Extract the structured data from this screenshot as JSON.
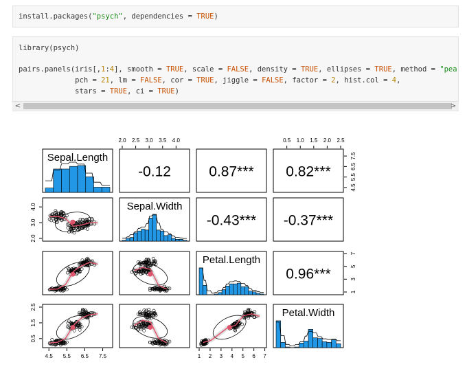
{
  "code_block_1": {
    "func": "install.packages",
    "open": "(",
    "arg1": "\"psych\"",
    "sep": ", dependencies = ",
    "val": "TRUE",
    "close": ")"
  },
  "code_block_2": {
    "line1": "library(psych)",
    "line3": {
      "a": "pairs.panels(iris[,",
      "b": "1",
      "c": ":",
      "d": "4",
      "e": "], smooth = ",
      "f": "TRUE",
      "g": ", scale = ",
      "h": "FALSE",
      "i": ", density = ",
      "j": "TRUE",
      "k": ", ellipses = ",
      "l": "TRUE",
      "m": ", method = ",
      "n": "\"pearson\""
    },
    "line4": {
      "a": "             pch = ",
      "b": "21",
      "c": ", lm = ",
      "d": "FALSE",
      "e": ", cor = ",
      "f": "TRUE",
      "g": ", jiggle = ",
      "h": "FALSE",
      "i": ", factor = ",
      "j": "2",
      "k": ", hist.col = ",
      "l": "4",
      "m": ","
    },
    "line5": {
      "a": "             stars = ",
      "b": "TRUE",
      "c": ", ci = ",
      "d": "TRUE",
      "e": ")"
    }
  },
  "scrollbar": {
    "left_arrow": "<",
    "right_arrow": ">"
  },
  "chart_data": {
    "type": "scatter",
    "variables": [
      "Sepal.Length",
      "Sepal.Width",
      "Petal.Length",
      "Petal.Width"
    ],
    "correlations": {
      "Sepal.Length|Sepal.Width": "-0.12",
      "Sepal.Length|Petal.Length": "0.87***",
      "Sepal.Length|Petal.Width": "0.82***",
      "Sepal.Width|Petal.Length": "-0.43***",
      "Sepal.Width|Petal.Width": "-0.37***",
      "Petal.Length|Petal.Width": "0.96***"
    },
    "ticks": {
      "Sepal.Length": [
        "4.5",
        "5.5",
        "6.5",
        "7.5"
      ],
      "Sepal.Width_top": [
        "2.0",
        "2.5",
        "3.0",
        "3.5",
        "4.0"
      ],
      "Sepal.Width_left": [
        "2.0",
        "3.0",
        "4.0"
      ],
      "Petal.Length_bottom": [
        "1",
        "2",
        "3",
        "4",
        "5",
        "6",
        "7"
      ],
      "Petal.Length_right": [
        "1",
        "3",
        "5",
        "7"
      ],
      "Petal.Width_top": [
        "0.5",
        "1.0",
        "1.5",
        "2.0",
        "2.5"
      ],
      "Petal.Width_left": [
        "0.5",
        "1.5",
        "2.5"
      ],
      "Sepal.Length_right": [
        "4.5",
        "5.5",
        "6.5",
        "7.5"
      ]
    },
    "ranges": {
      "Sepal.Length": [
        4.3,
        7.9
      ],
      "Sepal.Width": [
        2.0,
        4.4
      ],
      "Petal.Length": [
        1.0,
        6.9
      ],
      "Petal.Width": [
        0.1,
        2.5
      ]
    },
    "histograms": {
      "Sepal.Length": [
        5,
        27,
        27,
        30,
        31,
        18,
        6,
        6
      ],
      "Sepal.Width": [
        1,
        3,
        4,
        9,
        11,
        13,
        12,
        25,
        29,
        12,
        11,
        6,
        7,
        3,
        2,
        2,
        1
      ],
      "Petal.Length": [
        37,
        13,
        0,
        0,
        1,
        3,
        7,
        12,
        15,
        15,
        16,
        11,
        11,
        5,
        4,
        2,
        1
      ],
      "Petal.Width": [
        41,
        8,
        1,
        0,
        1,
        7,
        10,
        28,
        15,
        14,
        9,
        8,
        12,
        6
      ]
    },
    "colors": {
      "histogram": "#2297e6",
      "loess": "#df536b",
      "ellipse": "#000000",
      "ci_band": "#d8d8d8"
    }
  }
}
